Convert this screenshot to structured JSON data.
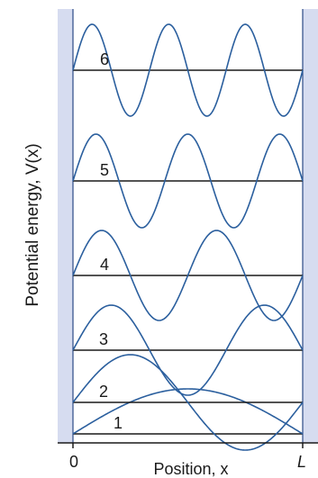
{
  "y_axis_label": "Potential energy, V(x)",
  "x_axis_label": "Position, x",
  "x_ticks": [
    "0",
    "L"
  ],
  "wall_color": "#d6dcf0",
  "wall_edge_color": "#2b4a86",
  "wave_color": "#2b5f9e",
  "level_line_color": "#1a1a1a",
  "levels": [
    {
      "n": 1,
      "label": "1"
    },
    {
      "n": 2,
      "label": "2"
    },
    {
      "n": 3,
      "label": "3"
    },
    {
      "n": 4,
      "label": "4"
    },
    {
      "n": 5,
      "label": "5"
    },
    {
      "n": 6,
      "label": "6"
    }
  ]
}
